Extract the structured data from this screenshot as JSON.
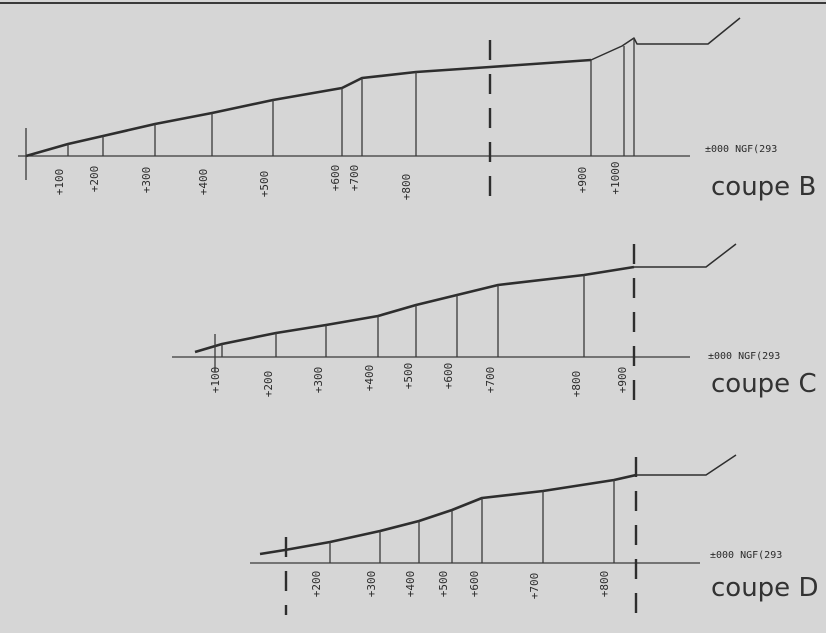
{
  "sections": [
    {
      "id": "B",
      "title": "coupe B",
      "reference_label": "±000  NGF(293",
      "levels": [
        {
          "label": "+100"
        },
        {
          "label": "+200"
        },
        {
          "label": "+300"
        },
        {
          "label": "+400"
        },
        {
          "label": "+500"
        },
        {
          "label": "+600"
        },
        {
          "label": "+700"
        },
        {
          "label": "+800"
        },
        {
          "label": "+900"
        },
        {
          "label": "+1000"
        }
      ]
    },
    {
      "id": "C",
      "title": "coupe C",
      "reference_label": "±000  NGF(293",
      "levels": [
        {
          "label": "+100"
        },
        {
          "label": "+200"
        },
        {
          "label": "+300"
        },
        {
          "label": "+400"
        },
        {
          "label": "+500"
        },
        {
          "label": "+600"
        },
        {
          "label": "+700"
        },
        {
          "label": "+800"
        },
        {
          "label": "+900"
        }
      ]
    },
    {
      "id": "D",
      "title": "coupe D",
      "reference_label": "±000  NGF(293",
      "levels": [
        {
          "label": "+200"
        },
        {
          "label": "+300"
        },
        {
          "label": "+400"
        },
        {
          "label": "+500"
        },
        {
          "label": "+600"
        },
        {
          "label": "+700"
        },
        {
          "label": "+800"
        }
      ]
    }
  ]
}
